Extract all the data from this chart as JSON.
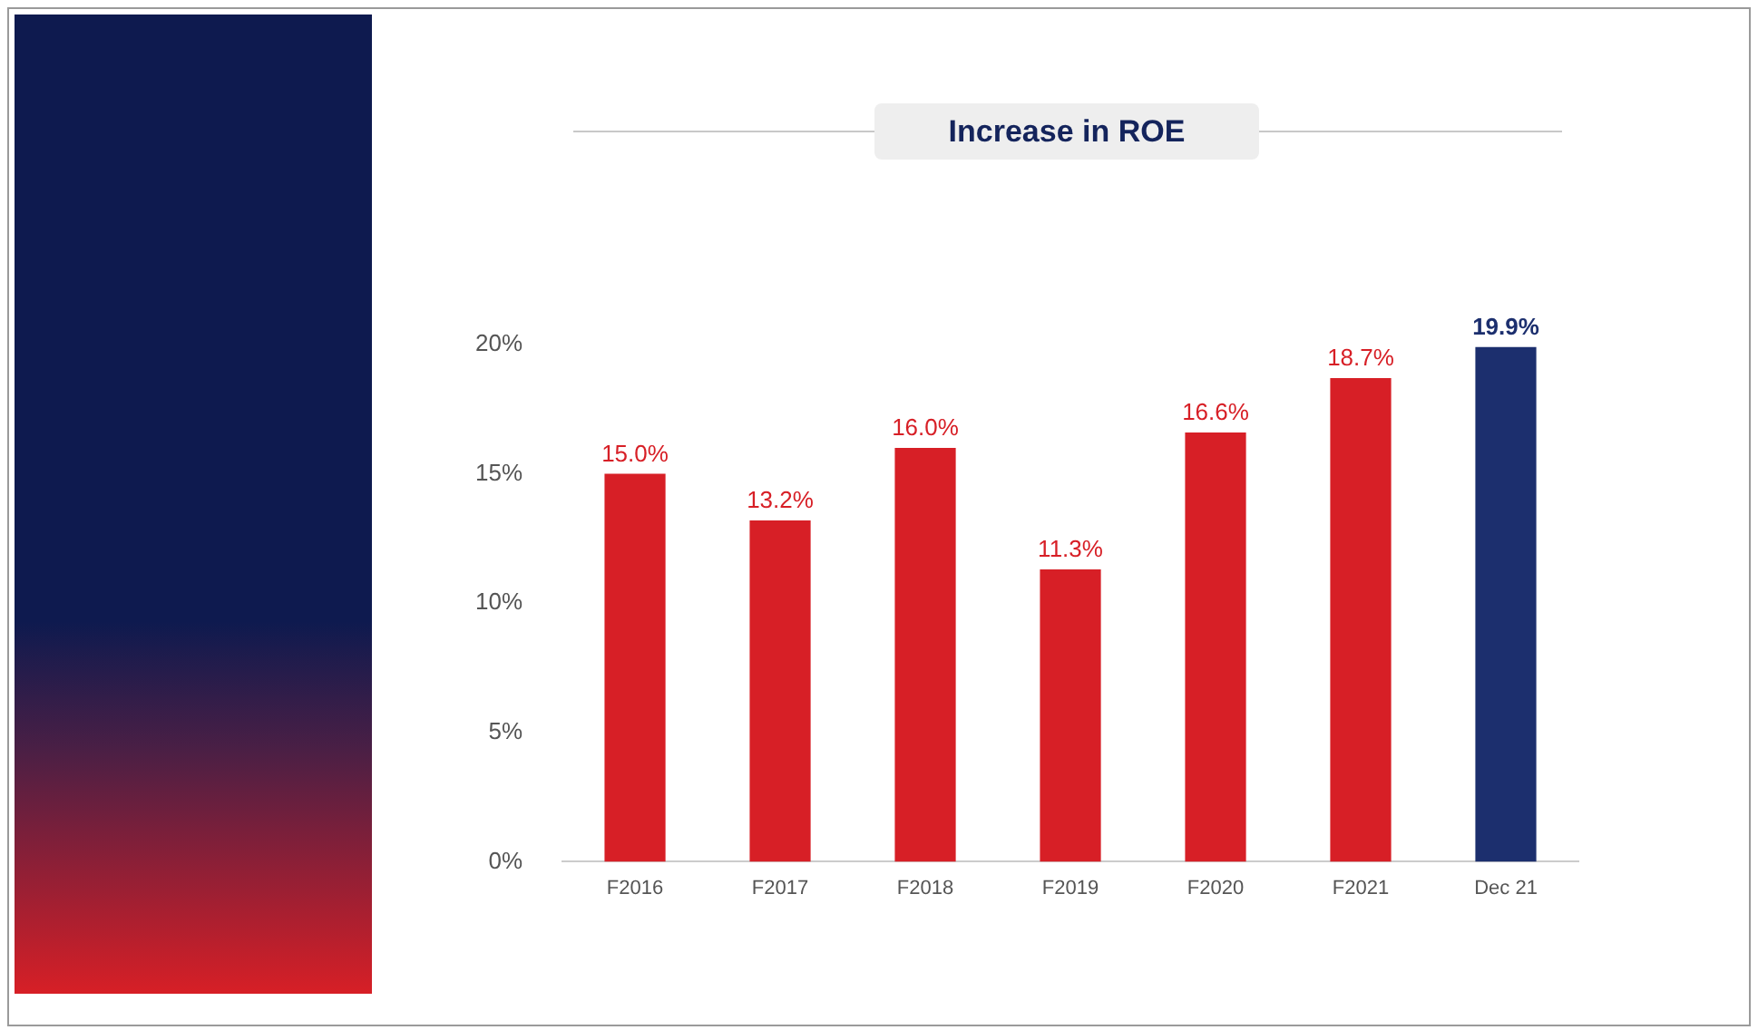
{
  "chart_data": {
    "type": "bar",
    "title": "Increase in ROE",
    "categories": [
      "F2016",
      "F2017",
      "F2018",
      "F2019",
      "F2020",
      "F2021",
      "Dec 21"
    ],
    "values": [
      15.0,
      13.2,
      16.0,
      11.3,
      16.6,
      18.7,
      19.9
    ],
    "colors": [
      "#d71f26",
      "#d71f26",
      "#d71f26",
      "#d71f26",
      "#d71f26",
      "#d71f26",
      "#1c2f6e"
    ],
    "value_labels": [
      "15.0%",
      "13.2%",
      "16.0%",
      "11.3%",
      "16.6%",
      "18.7%",
      "19.9%"
    ],
    "ylim": [
      0,
      20
    ],
    "yticks": [
      {
        "value": 0,
        "label": "0%"
      },
      {
        "value": 5,
        "label": "5%"
      },
      {
        "value": 10,
        "label": "10%"
      },
      {
        "value": 15,
        "label": "15%"
      },
      {
        "value": 20,
        "label": "20%"
      }
    ],
    "grid": false,
    "legend": false
  }
}
